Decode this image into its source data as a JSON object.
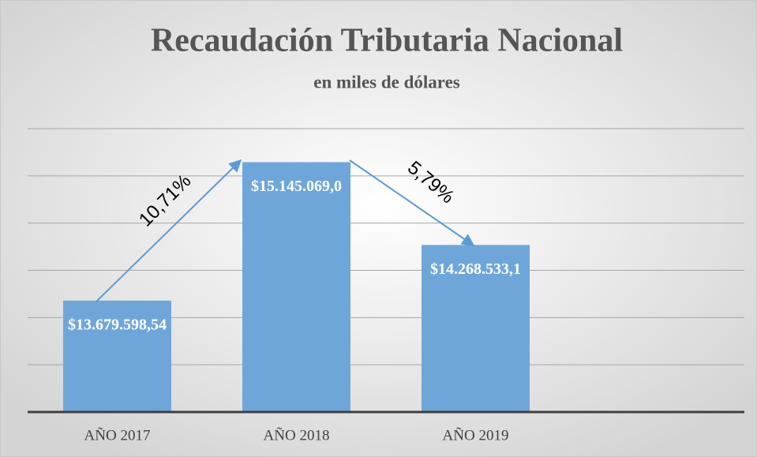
{
  "chart_data": {
    "type": "bar",
    "title": "Recaudación Tributaria Nacional",
    "subtitle": "en miles de dólares",
    "categories": [
      "AÑO 2017",
      "AÑO 2018",
      "AÑO 2019"
    ],
    "values": [
      13679598.54,
      15145069.0,
      14268533.1
    ],
    "value_labels": [
      "$13.679.598,54",
      "$15.145.069,0",
      "$14.268.533,1"
    ],
    "color": "#6fa6da",
    "ylim": [
      12500000,
      15500000
    ],
    "yticks": [
      12500000,
      13000000,
      13500000,
      14000000,
      14500000,
      15000000,
      15500000
    ],
    "grid": true,
    "annotations": [
      "10,71%",
      "5,79%"
    ]
  }
}
